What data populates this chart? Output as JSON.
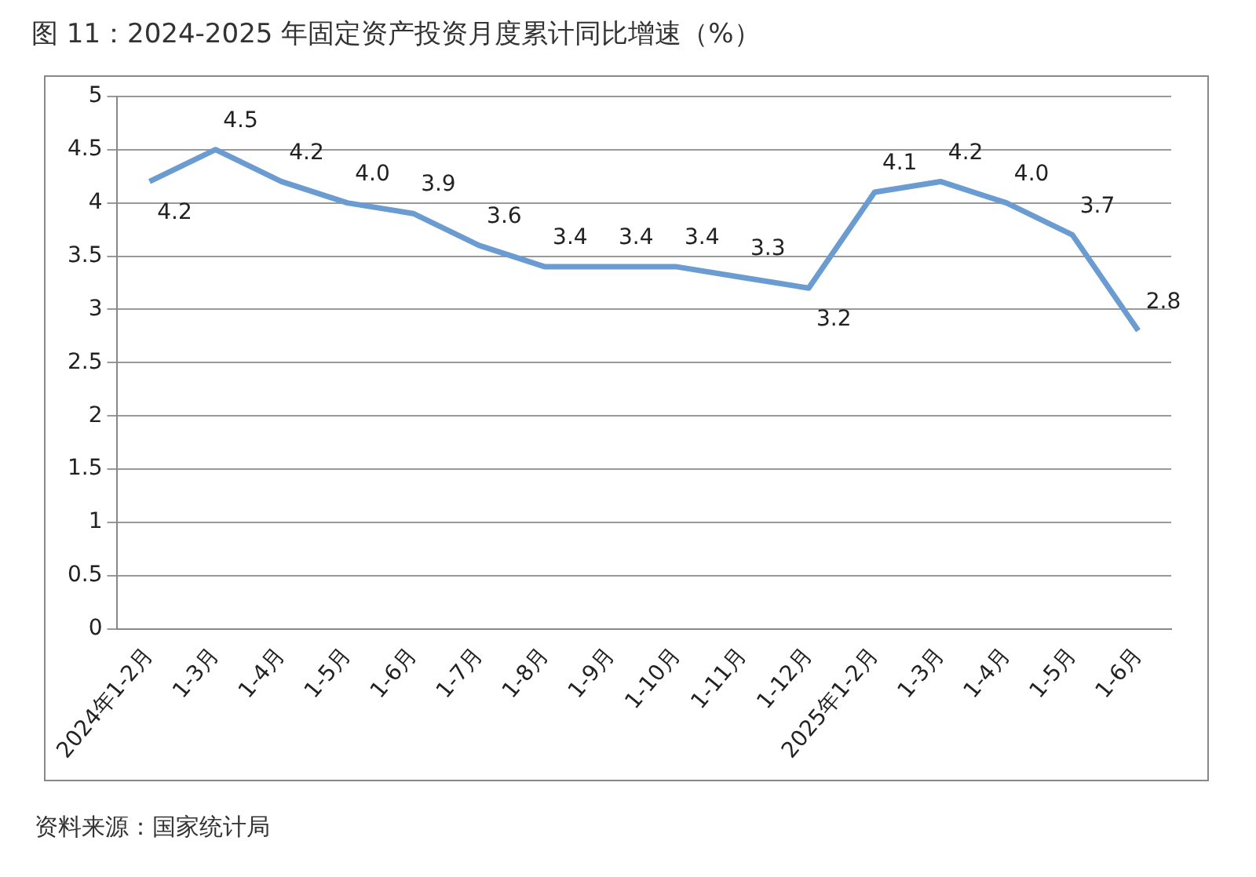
{
  "chart_data": {
    "type": "line",
    "title": "图 11：2024-2025 年固定资产投资月度累计同比增速（%）",
    "annotations": [
      "资料来源：国家统计局"
    ],
    "categories": [
      "2024年1-2月",
      "1-3月",
      "1-4月",
      "1-5月",
      "1-6月",
      "1-7月",
      "1-8月",
      "1-9月",
      "1-10月",
      "1-11月",
      "1-12月",
      "2025年1-2月",
      "1-3月",
      "1-4月",
      "1-5月",
      "1-6月"
    ],
    "series": [
      {
        "color": "#6a9bd1",
        "values": [
          4.2,
          4.5,
          4.2,
          4.0,
          3.9,
          3.6,
          3.4,
          3.4,
          3.4,
          3.3,
          3.2,
          4.1,
          4.2,
          4.0,
          3.7,
          2.8
        ],
        "value_labels": [
          "4.2",
          "4.5",
          "4.2",
          "4.0",
          "3.9",
          "3.6",
          "3.4",
          "3.4",
          "3.4",
          "3.3",
          "3.2",
          "4.1",
          "4.2",
          "4.0",
          "3.7",
          "2.8"
        ]
      }
    ],
    "ylim": [
      0,
      5
    ],
    "yticks": [
      0,
      0.5,
      1,
      1.5,
      2,
      2.5,
      3,
      3.5,
      4,
      4.5,
      5
    ],
    "grid": "y",
    "legend": false,
    "marker": "none",
    "line_style": "solid"
  }
}
